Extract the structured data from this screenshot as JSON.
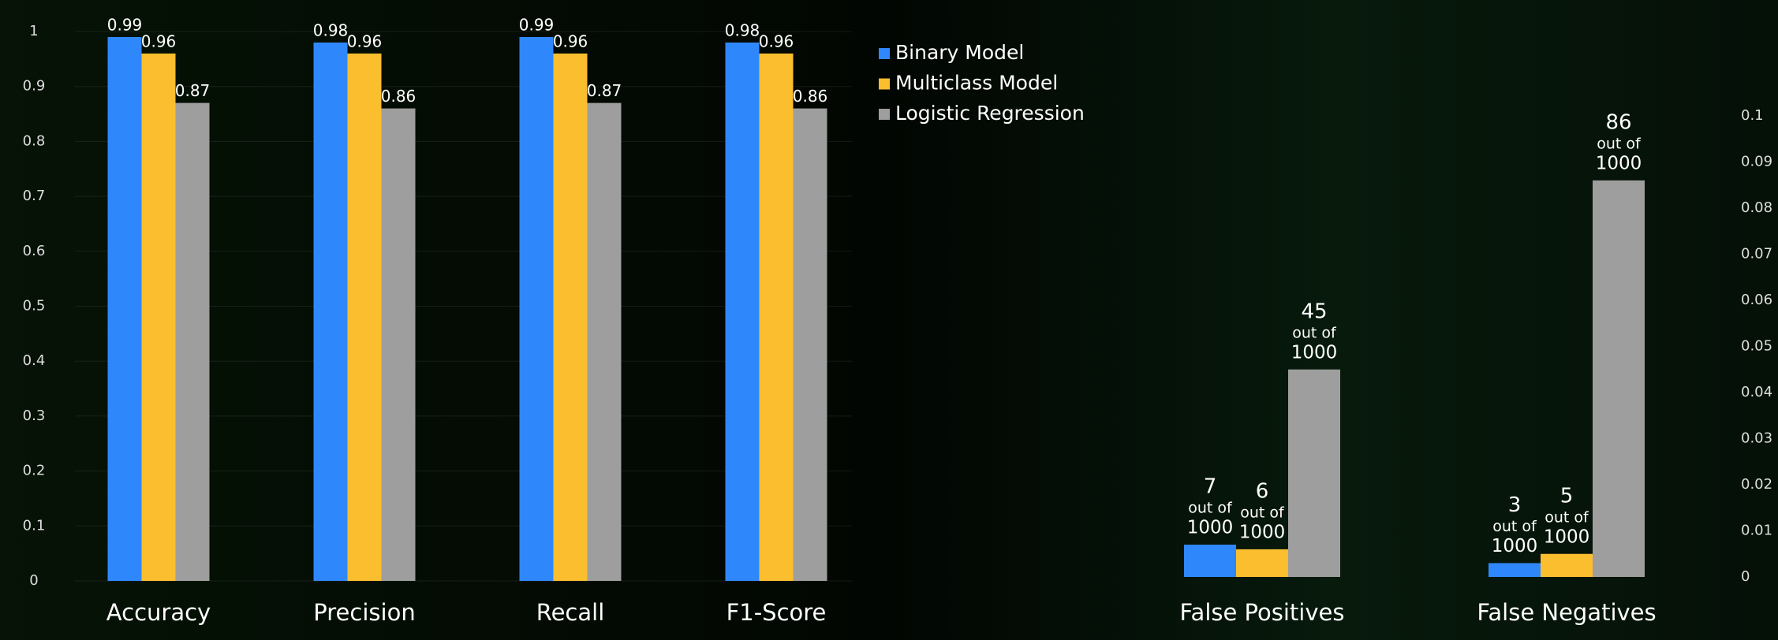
{
  "chart_data": [
    {
      "type": "bar",
      "categories": [
        "Accuracy",
        "Precision",
        "Recall",
        "F1-Score"
      ],
      "series": [
        {
          "name": "Binary Model",
          "color": "#2f88fb",
          "values": [
            0.99,
            0.98,
            0.99,
            0.98
          ]
        },
        {
          "name": "Multiclass Model",
          "color": "#fbbe2f",
          "values": [
            0.96,
            0.96,
            0.96,
            0.96
          ]
        },
        {
          "name": "Logistic Regression",
          "color": "#9e9e9e",
          "values": [
            0.87,
            0.86,
            0.87,
            0.86
          ]
        }
      ],
      "ylim": [
        0,
        1
      ],
      "yticks": [
        0,
        0.1,
        0.2,
        0.3,
        0.4,
        0.5,
        0.6,
        0.7,
        0.8,
        0.9,
        1
      ],
      "y_axis_side": "left",
      "grid": true,
      "legend": "right"
    },
    {
      "type": "bar",
      "categories": [
        "False Positives",
        "False Negatives"
      ],
      "series": [
        {
          "name": "Binary Model",
          "color": "#2f88fb",
          "values": [
            0.007,
            0.003
          ],
          "value_labels": [
            [
              "7",
              "out of",
              "1000"
            ],
            [
              "3",
              "out of",
              "1000"
            ]
          ]
        },
        {
          "name": "Multiclass Model",
          "color": "#fbbe2f",
          "values": [
            0.006,
            0.005
          ],
          "value_labels": [
            [
              "6",
              "out of",
              "1000"
            ],
            [
              "5",
              "out of",
              "1000"
            ]
          ]
        },
        {
          "name": "Logistic Regression",
          "color": "#9e9e9e",
          "values": [
            0.045,
            0.086
          ],
          "value_labels": [
            [
              "45",
              "out of",
              "1000"
            ],
            [
              "86",
              "out of",
              "1000"
            ]
          ]
        }
      ],
      "ylim": [
        0,
        0.1
      ],
      "yticks": [
        0,
        0.01,
        0.02,
        0.03,
        0.04,
        0.05,
        0.06,
        0.07,
        0.08,
        0.09,
        0.1
      ],
      "y_axis_side": "right",
      "grid": false
    }
  ]
}
